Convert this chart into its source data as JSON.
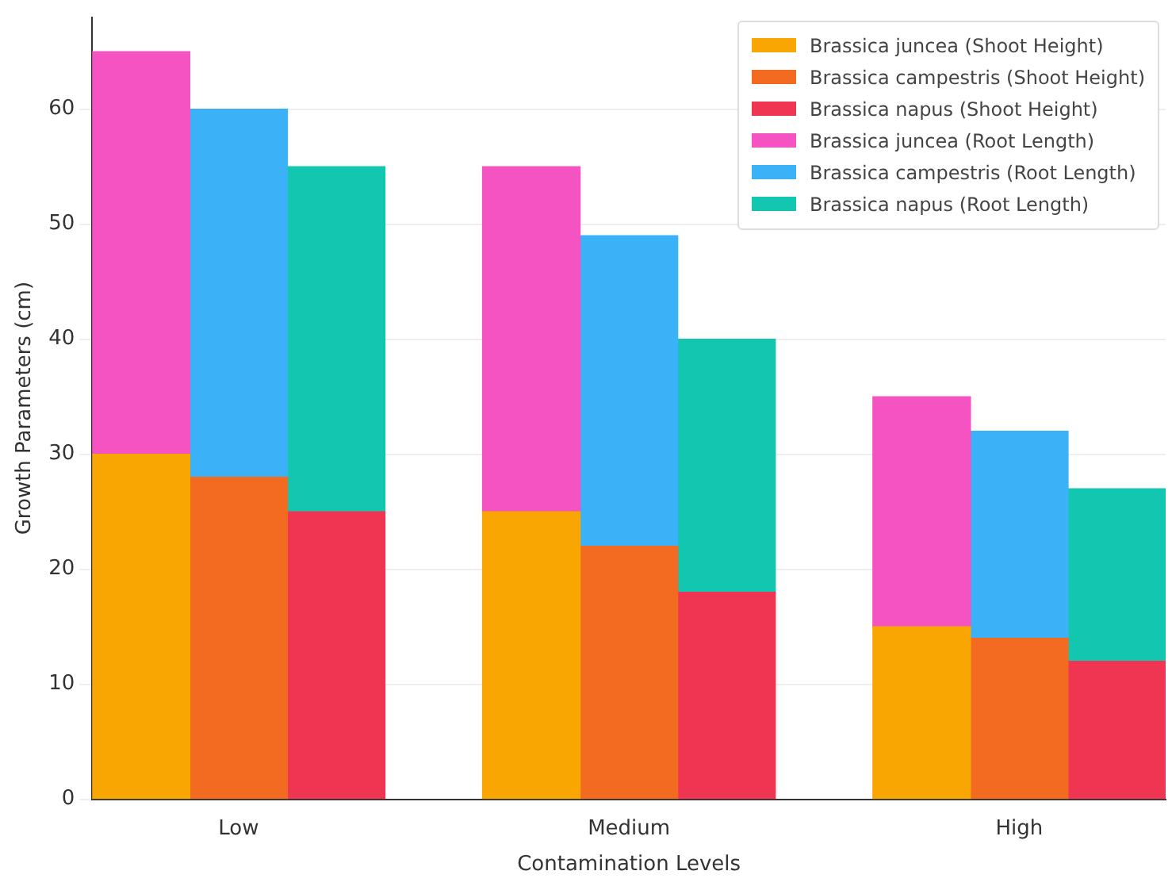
{
  "chart_data": {
    "type": "bar",
    "xlabel": "Contamination Levels",
    "ylabel": "Growth Parameters (cm)",
    "categories": [
      null,
      "Low",
      null,
      null,
      null,
      "Medium",
      null,
      null,
      null,
      "High",
      null
    ],
    "stacked": true,
    "series": [
      {
        "name": "Brassica juncea (Shoot Height)",
        "color": "#f9a602",
        "values": [
          30,
          null,
          null,
          null,
          25,
          null,
          null,
          null,
          15,
          null,
          null
        ]
      },
      {
        "name": "Brassica campestris (Shoot Height)",
        "color": "#f26b21",
        "values": [
          null,
          28,
          null,
          null,
          null,
          22,
          null,
          null,
          null,
          14,
          null
        ]
      },
      {
        "name": "Brassica napus (Shoot Height)",
        "color": "#f03553",
        "values": [
          null,
          null,
          25,
          null,
          null,
          null,
          18,
          null,
          null,
          null,
          12
        ]
      },
      {
        "name": "Brassica juncea (Root Length)",
        "color": "#f553c2",
        "values": [
          35,
          null,
          null,
          null,
          30,
          null,
          null,
          null,
          20,
          null,
          null
        ]
      },
      {
        "name": "Brassica campestris (Root Length)",
        "color": "#3bb2f7",
        "values": [
          null,
          32,
          null,
          null,
          null,
          27,
          null,
          null,
          null,
          18,
          null
        ]
      },
      {
        "name": "Brassica napus (Root Length)",
        "color": "#13c6b0",
        "values": [
          null,
          null,
          30,
          null,
          null,
          null,
          22,
          null,
          null,
          null,
          15
        ]
      }
    ],
    "ylim": [
      0,
      68
    ],
    "yticks": [
      0,
      10,
      20,
      30,
      40,
      50,
      60
    ],
    "grid": "y",
    "legend": "top right"
  }
}
